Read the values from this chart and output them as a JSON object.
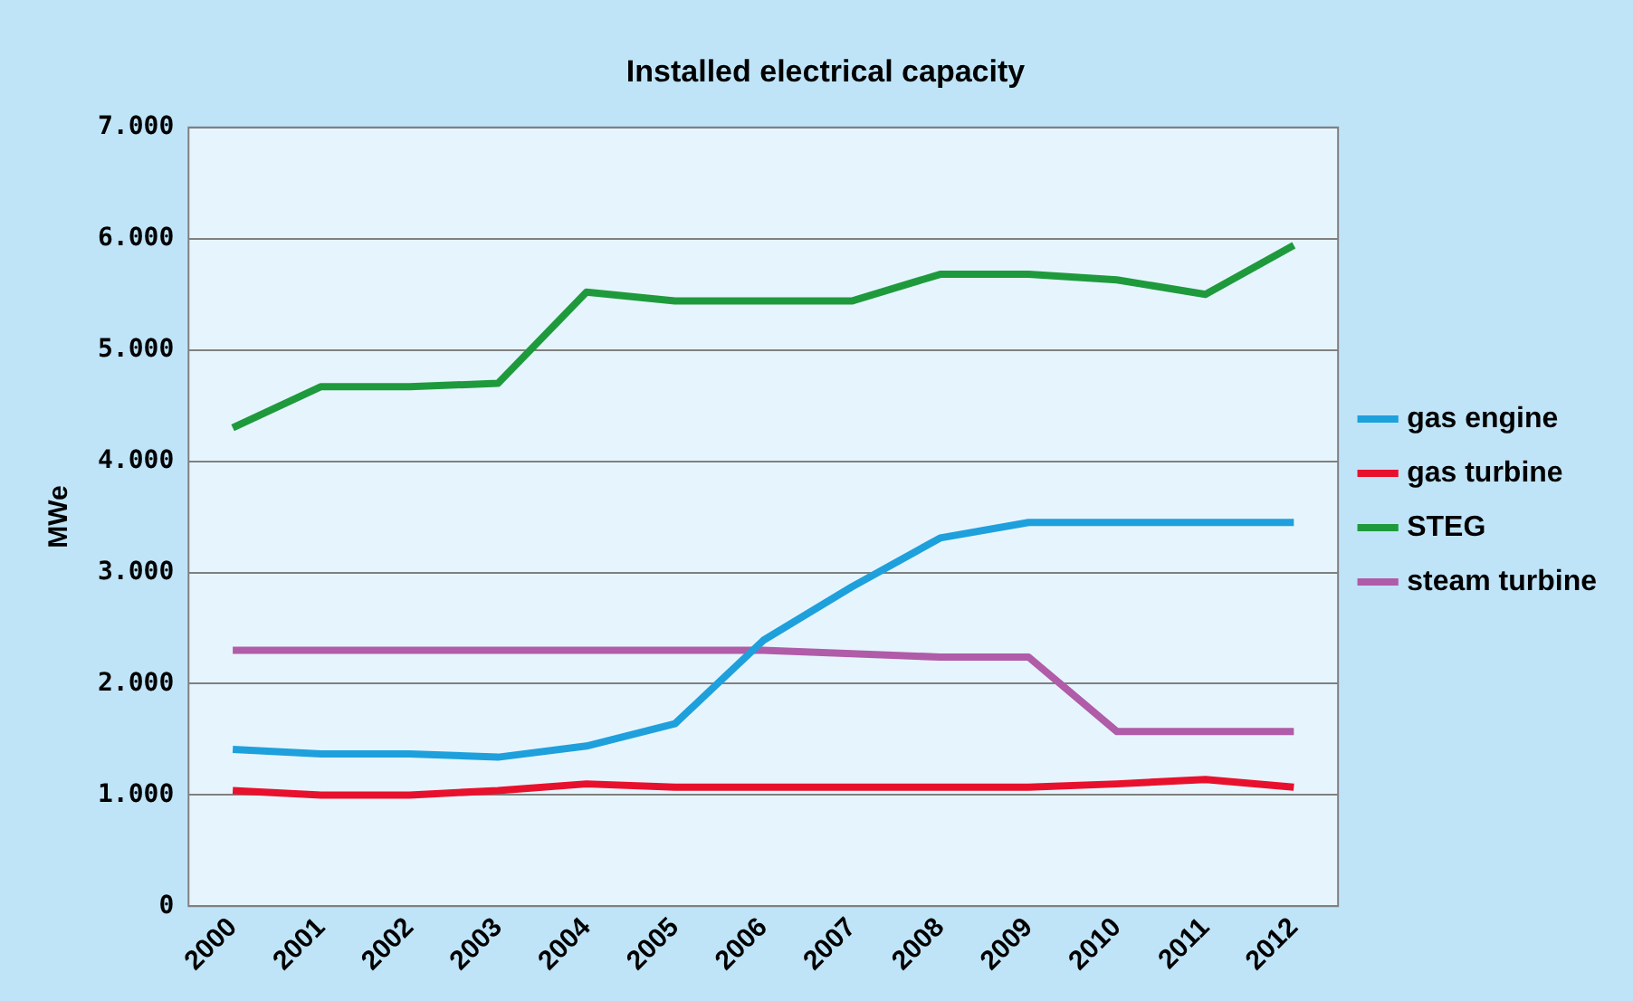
{
  "chart_data": {
    "type": "line",
    "title": "Installed electrical capacity",
    "ylabel": "MWe",
    "categories": [
      "2000",
      "2001",
      "2002",
      "2003",
      "2004",
      "2005",
      "2006",
      "2007",
      "2008",
      "2009",
      "2010",
      "2011",
      "2012"
    ],
    "series": [
      {
        "name": "gas engine",
        "color": "#1ea0dc",
        "values": [
          1410,
          1370,
          1370,
          1340,
          1440,
          1640,
          2390,
          2870,
          3310,
          3450,
          3450,
          3450,
          3450
        ]
      },
      {
        "name": "gas turbine",
        "color": "#e8112d",
        "values": [
          1040,
          1000,
          1000,
          1040,
          1100,
          1070,
          1070,
          1070,
          1070,
          1070,
          1100,
          1140,
          1070
        ]
      },
      {
        "name": "STEG",
        "color": "#1e9a3c",
        "values": [
          4300,
          4670,
          4670,
          4700,
          5520,
          5440,
          5440,
          5440,
          5680,
          5680,
          5630,
          5500,
          5940
        ]
      },
      {
        "name": "steam turbine",
        "color": "#b05ca8",
        "values": [
          2300,
          2300,
          2300,
          2300,
          2300,
          2300,
          2300,
          2270,
          2240,
          2240,
          1570,
          1570,
          1570
        ]
      }
    ],
    "ylim": [
      0,
      7000
    ],
    "yticks": [
      {
        "value": 0,
        "label": "0"
      },
      {
        "value": 1000,
        "label": "1.000"
      },
      {
        "value": 2000,
        "label": "2.000"
      },
      {
        "value": 3000,
        "label": "3.000"
      },
      {
        "value": 4000,
        "label": "4.000"
      },
      {
        "value": 5000,
        "label": "5.000"
      },
      {
        "value": 6000,
        "label": "6.000"
      },
      {
        "value": 7000,
        "label": "7.000"
      }
    ],
    "grid": "y",
    "legend": "right",
    "marker": "none",
    "line_style": "solid"
  }
}
